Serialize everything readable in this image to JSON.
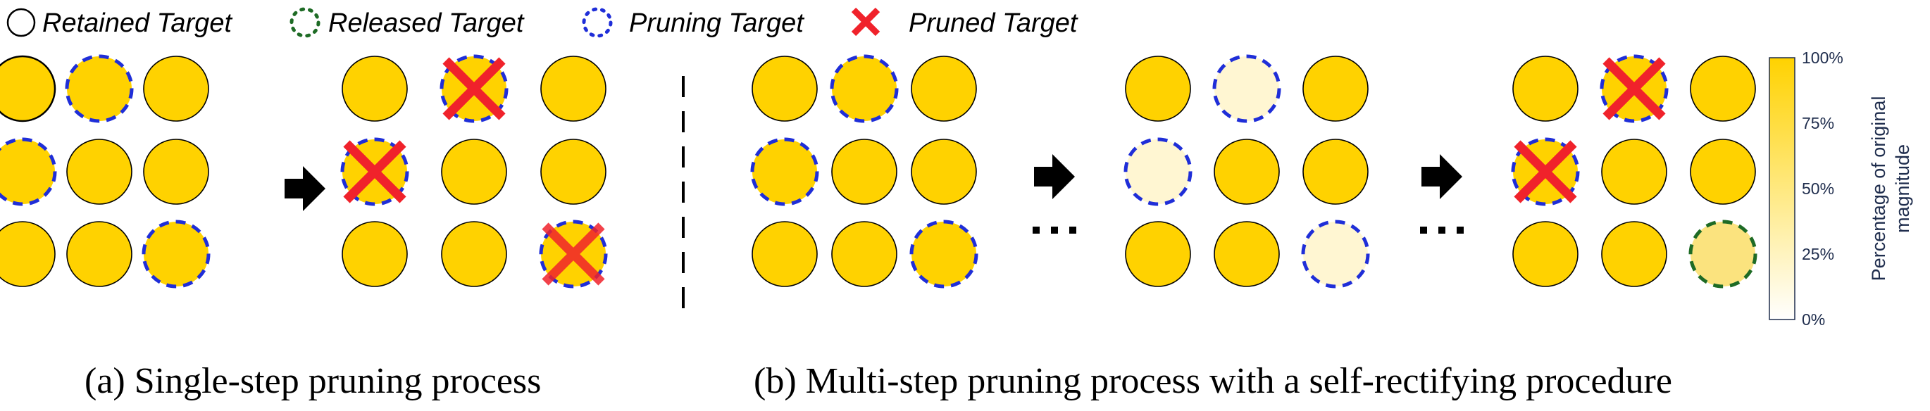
{
  "legend": {
    "retained": "Retained Target",
    "released": "Released Target",
    "pruning": "Pruning Target",
    "pruned": "Pruned Target"
  },
  "captions": {
    "a": "(a) Single-step pruning process",
    "b": "(b) Multi-step pruning process with a self-rectifying procedure"
  },
  "colorbar": {
    "label_line1": "Percentage of original",
    "label_line2": "magnitude",
    "ticks": [
      "100%",
      "75%",
      "50%",
      "25%",
      "0%"
    ]
  },
  "colors": {
    "fill_full": "#FFD200",
    "fill_low": "#FFF6D2",
    "fill_mid": "#FBE37E",
    "pruning_outline": "#1F2ED8",
    "released_outline": "#1E6B25",
    "cross": "#F0222B",
    "arrow": "#000000"
  },
  "grids": [
    {
      "name": "a-before",
      "cells": [
        [
          "retained",
          "pruning",
          "normal"
        ],
        [
          "pruning",
          "normal",
          "normal"
        ],
        [
          "normal",
          "normal",
          "pruning"
        ]
      ]
    },
    {
      "name": "a-after",
      "cells": [
        [
          "normal",
          "pruned",
          "normal"
        ],
        [
          "pruned",
          "normal",
          "normal"
        ],
        [
          "normal",
          "normal",
          "pruned-faded"
        ]
      ]
    },
    {
      "name": "b-step1",
      "cells": [
        [
          "normal",
          "pruning",
          "normal"
        ],
        [
          "pruning",
          "normal",
          "normal"
        ],
        [
          "normal",
          "normal",
          "pruning"
        ]
      ]
    },
    {
      "name": "b-step2",
      "cells": [
        [
          "normal",
          "pruning-low",
          "normal"
        ],
        [
          "pruning-low",
          "normal",
          "normal"
        ],
        [
          "normal",
          "normal",
          "pruning-low"
        ]
      ]
    },
    {
      "name": "b-step3",
      "cells": [
        [
          "normal",
          "pruned",
          "normal"
        ],
        [
          "pruned",
          "normal",
          "normal"
        ],
        [
          "normal",
          "normal",
          "released"
        ]
      ]
    }
  ]
}
